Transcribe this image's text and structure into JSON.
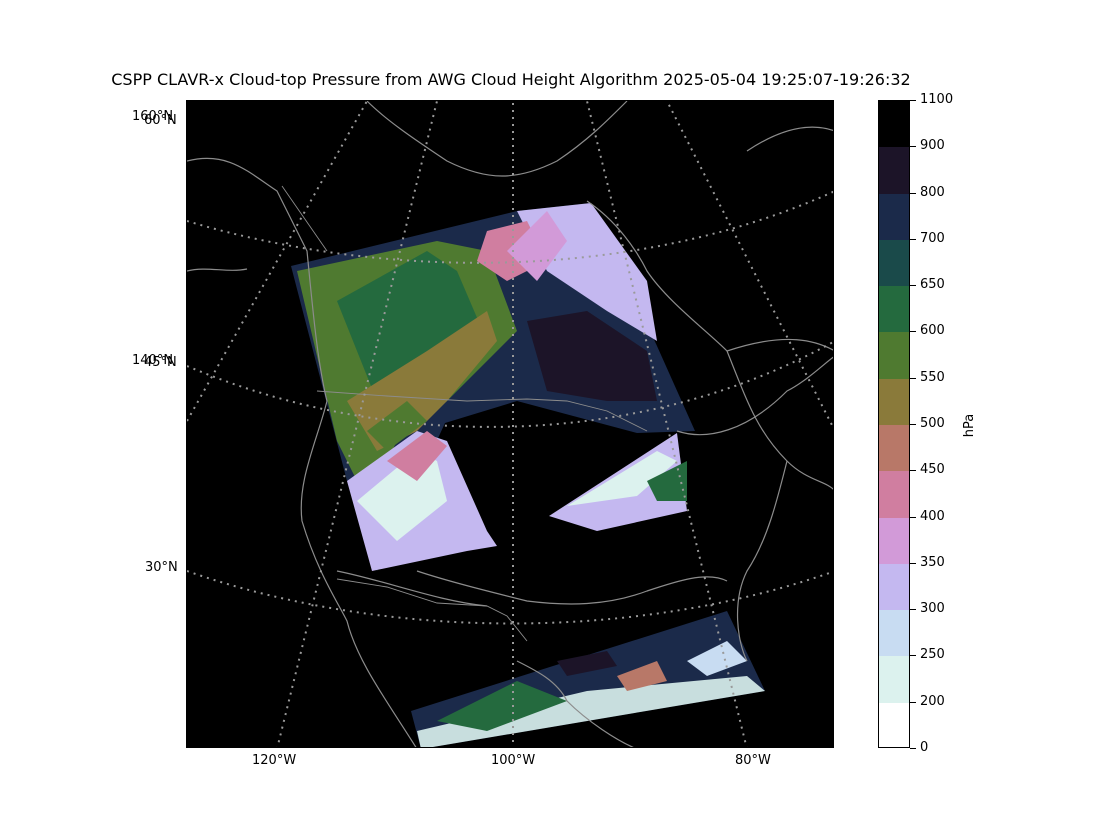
{
  "title": "CSPP CLAVR-x Cloud-top Pressure from AWG Cloud Height Algorithm 2025-05-04 19:25:07-19:26:32",
  "map": {
    "lat_labels": [
      "160°N",
      "60°N",
      "140°N",
      "45°N",
      "30°N"
    ],
    "lon_labels": [
      "120°W",
      "100°W",
      "80°W"
    ],
    "background_color": "#000000",
    "coastline_color": "#8c8c8c",
    "gridline_color": "#9a9a9a"
  },
  "colorbar": {
    "unit": "hPa",
    "tick_labels": [
      "1100",
      "900",
      "800",
      "700",
      "650",
      "600",
      "550",
      "500",
      "450",
      "400",
      "350",
      "300",
      "250",
      "200",
      "0"
    ],
    "colors": [
      "#000000",
      "#1c1428",
      "#1b2a4a",
      "#1a4a4a",
      "#246a3e",
      "#4f7a30",
      "#8a7a3a",
      "#b87868",
      "#d07ea0",
      "#d29ad8",
      "#c4b8f0",
      "#c8dcf2",
      "#dcf2ee",
      "#ffffff"
    ]
  }
}
